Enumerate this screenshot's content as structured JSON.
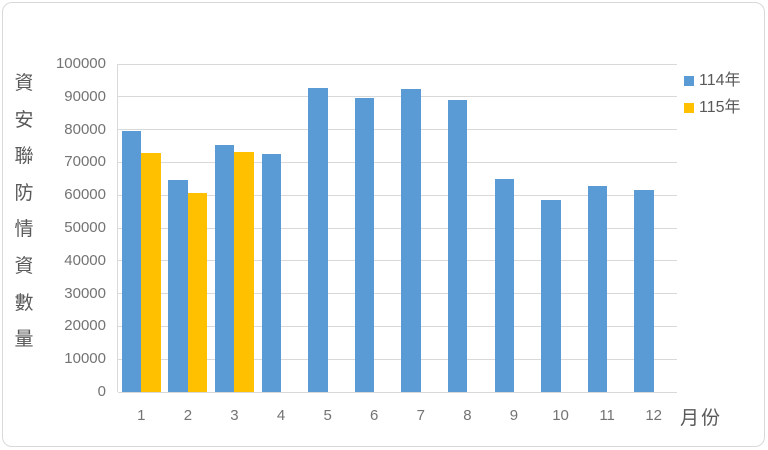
{
  "chart_data": {
    "type": "bar",
    "title": "",
    "categories": [
      "1",
      "2",
      "3",
      "4",
      "5",
      "6",
      "7",
      "8",
      "9",
      "10",
      "11",
      "12"
    ],
    "series": [
      {
        "name": "114年",
        "color": "#5B9BD5",
        "values": [
          79500,
          64500,
          75300,
          72600,
          92700,
          89700,
          92400,
          89100,
          65000,
          58600,
          62800,
          61600
        ]
      },
      {
        "name": "115年",
        "color": "#FFC000",
        "values": [
          72900,
          60800,
          73100,
          null,
          null,
          null,
          null,
          null,
          null,
          null,
          null,
          null
        ]
      }
    ],
    "xlabel": "月份",
    "ylabel": "資安聯防情資數量",
    "ylim": [
      0,
      100000
    ],
    "ytick_step": 10000,
    "grid": true,
    "legend_position": "top-right"
  },
  "colors": {
    "series1": "#5B9BD5",
    "series2": "#FFC000",
    "gridline": "#D9D9D9",
    "tick_text": "#737373",
    "title_text": "#595959",
    "border": "#D9D9D9",
    "background": "#FFFFFF"
  }
}
